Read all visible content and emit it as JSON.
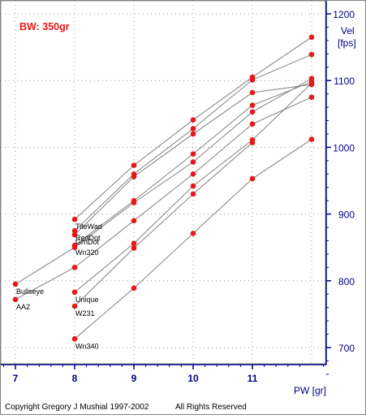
{
  "chart_data": {
    "type": "line",
    "title": "BW: 350gr",
    "xlabel": "PW [gr]",
    "ylabel": "Vel [fps]",
    "ylabel_lines": [
      "Vel",
      "[fps]"
    ],
    "xlim": [
      6.8,
      12.35
    ],
    "ylim": [
      655,
      1215
    ],
    "x_ticks": [
      7,
      8,
      9,
      10,
      11
    ],
    "y_ticks": [
      700,
      800,
      900,
      1000,
      1100,
      1200
    ],
    "grid": true,
    "legend": "none",
    "copyright": "Copyright Gregory J  Mushial 1997-2002",
    "rights": "All Rights Reserved",
    "colors": {
      "background": "#ffffff",
      "marker": "#e81818",
      "title": "#e81818",
      "line": "#808080",
      "grid": "#9a9a9a",
      "axis_text": "#000080",
      "label_text": "#000000"
    },
    "series": [
      {
        "name": "TiteWad",
        "x": [
          8,
          9,
          10,
          11,
          12
        ],
        "y": [
          892,
          973,
          1041,
          1105,
          1165
        ]
      },
      {
        "name": "RedDot",
        "x": [
          8,
          9,
          10,
          11,
          12
        ],
        "y": [
          875,
          960,
          1028,
          1101,
          1139
        ]
      },
      {
        "name": "GrnDot",
        "x": [
          8,
          9,
          10,
          11,
          12
        ],
        "y": [
          869,
          956,
          1020,
          1082,
          1094
        ]
      },
      {
        "name": "Wn320",
        "x": [
          8,
          9,
          10,
          11,
          12
        ],
        "y": [
          853,
          920,
          990,
          1063,
          1098
        ]
      },
      {
        "name": "Bullseye",
        "x": [
          7,
          8,
          9,
          10,
          11,
          12
        ],
        "y": [
          795,
          850,
          917,
          978,
          1053,
          1103
        ]
      },
      {
        "name": "AA2",
        "x": [
          7,
          8,
          9,
          10,
          11,
          12
        ],
        "y": [
          772,
          820,
          890,
          960,
          1035,
          1075
        ]
      },
      {
        "name": "Unique",
        "x": [
          8,
          9,
          10,
          11,
          12
        ],
        "y": [
          783,
          856,
          942,
          1011,
          1096
        ]
      },
      {
        "name": "W231",
        "x": [
          8,
          9,
          10,
          11
        ],
        "y": [
          762,
          849,
          930,
          1007
        ]
      },
      {
        "name": "Wn340",
        "x": [
          8,
          9,
          10,
          11,
          12
        ],
        "y": [
          713,
          789,
          871,
          953,
          1012
        ]
      }
    ]
  }
}
